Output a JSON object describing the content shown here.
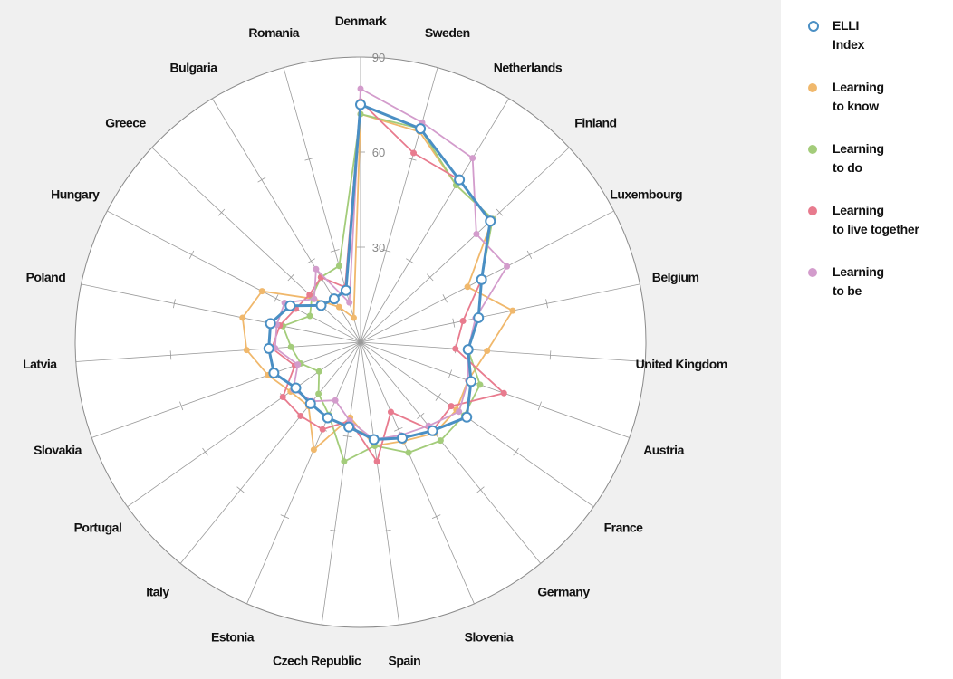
{
  "chart_data": {
    "type": "radar",
    "categories": [
      "Denmark",
      "Sweden",
      "Netherlands",
      "Finland",
      "Luxembourg",
      "Belgium",
      "United Kingdom",
      "Austria",
      "France",
      "Germany",
      "Slovenia",
      "Spain",
      "Czech Republic",
      "Estonia",
      "Italy",
      "Portugal",
      "Slovakia",
      "Latvia",
      "Poland",
      "Hungary",
      "Greece",
      "Bulgaria",
      "Romania"
    ],
    "rlim": [
      0,
      90
    ],
    "ticks": [
      30,
      60,
      90
    ],
    "tick_labels": [
      "30",
      "60",
      "90"
    ],
    "series": [
      {
        "name": "ELLI Index",
        "color": "#4a8fc4",
        "values": [
          75,
          70,
          60,
          56,
          43,
          38,
          34,
          37,
          41,
          36,
          33,
          31,
          27,
          26,
          25,
          25,
          29,
          29,
          29,
          25,
          17,
          16,
          17
        ]
      },
      {
        "name": "Learning to know",
        "color": "#f0b86c",
        "values": [
          72,
          69,
          58,
          57,
          38,
          49,
          40,
          36,
          37,
          37,
          34,
          33,
          24,
          37,
          26,
          27,
          31,
          36,
          38,
          35,
          20,
          13,
          8
        ]
      },
      {
        "name": "Learning to do",
        "color": "#a3cc7a",
        "values": [
          72,
          70,
          58,
          57,
          43,
          38,
          34,
          40,
          40,
          40,
          38,
          33,
          38,
          25,
          21,
          16,
          20,
          22,
          25,
          18,
          21,
          24,
          25
        ]
      },
      {
        "name": "Learning to live together",
        "color": "#e87b8e",
        "values": [
          76,
          62,
          60,
          56,
          43,
          33,
          30,
          48,
          35,
          36,
          24,
          38,
          25,
          30,
          30,
          30,
          22,
          28,
          26,
          23,
          22,
          24,
          18
        ]
      },
      {
        "name": "Learning to be",
        "color": "#d39ccc",
        "values": [
          80,
          72,
          68,
          50,
          52,
          37,
          34,
          36,
          38,
          34,
          32,
          31,
          25,
          20,
          24,
          26,
          21,
          27,
          27,
          27,
          20,
          27,
          13
        ]
      }
    ],
    "legend": "right",
    "grid": true
  }
}
